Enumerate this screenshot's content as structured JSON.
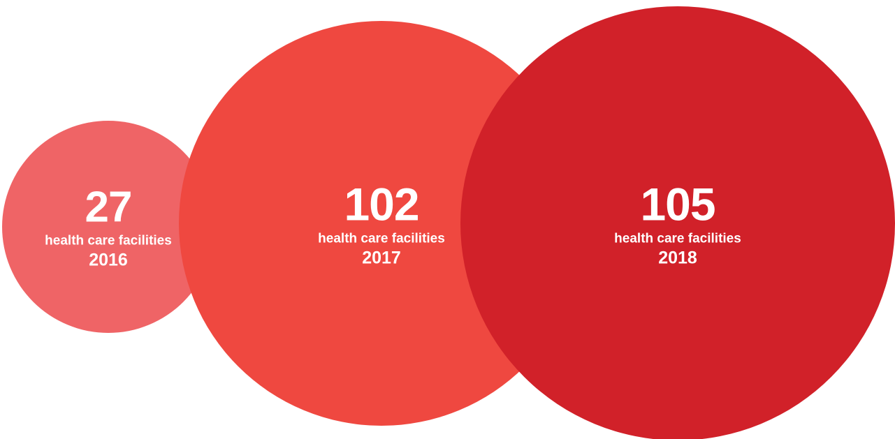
{
  "chart_data": {
    "type": "bubble",
    "x": [
      "2016",
      "2017",
      "2018"
    ],
    "values": [
      27,
      102,
      105
    ],
    "value_labels": [
      "27",
      "102",
      "105"
    ],
    "label": "health care facilities",
    "colors": [
      "#ef6466",
      "#ef4840",
      "#d12129"
    ]
  }
}
